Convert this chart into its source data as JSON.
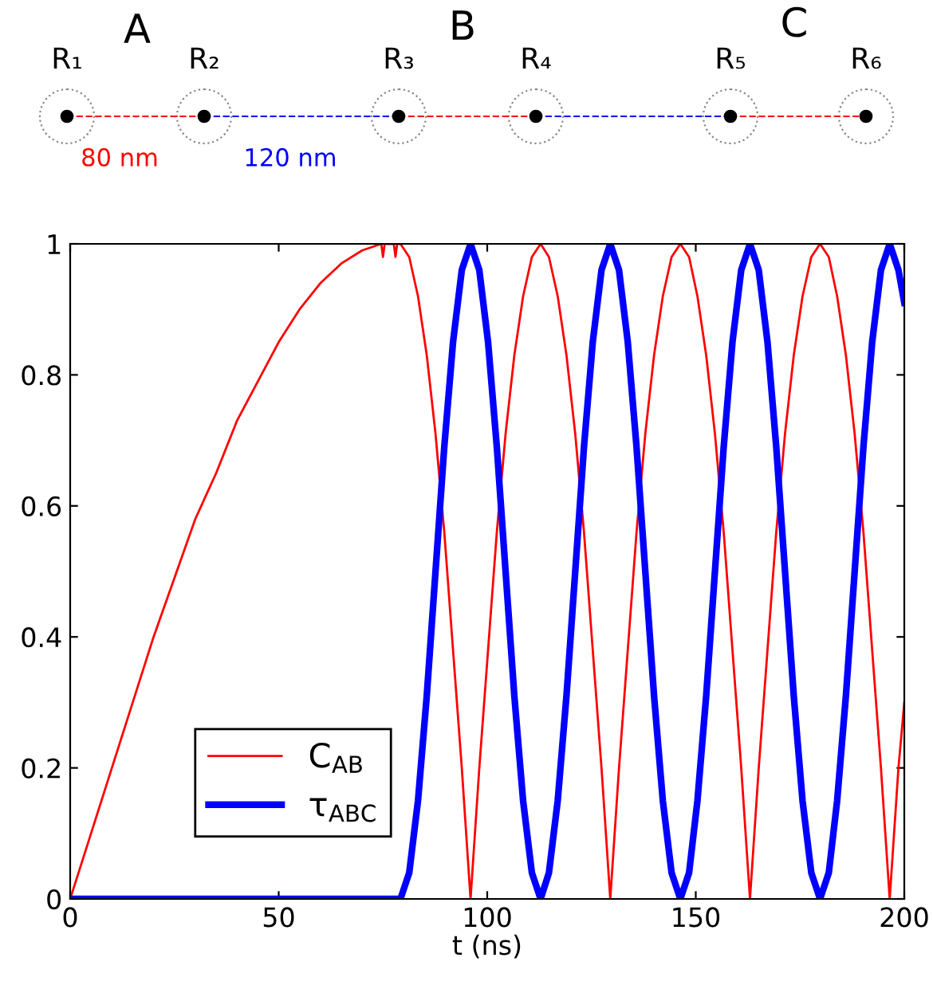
{
  "chart_data": {
    "type": "line",
    "xlabel": "t (ns)",
    "xlim": [
      0,
      200
    ],
    "xticks": [
      0,
      50,
      100,
      150,
      200
    ],
    "ylim": [
      0,
      1
    ],
    "yticks": [
      0,
      0.2,
      0.4,
      0.6,
      0.8,
      1
    ],
    "grid": false,
    "legend": "bottom left",
    "marker": "none",
    "line_style": "solid",
    "annotations": [
      "R₁",
      "R₂",
      "R₃",
      "R₄",
      "R₅",
      "R₆",
      "A",
      "B",
      "C",
      "80 nm",
      "120 nm"
    ],
    "series": [
      {
        "name": "C$_{AB}$",
        "color": "#ff0000",
        "x": [
          0,
          5,
          10,
          15,
          20,
          25,
          30,
          35,
          40,
          45,
          50,
          55,
          60,
          65,
          70,
          74.6,
          75,
          75.4,
          77.6,
          78,
          78.4,
          79.2,
          81.3,
          83.4,
          85.5,
          87.6,
          89.7,
          91.8,
          93.9,
          96.0,
          98.1,
          100.2,
          102.3,
          104.4,
          106.5,
          108.6,
          110.7,
          112.8,
          114.8,
          116.9,
          119.0,
          121.1,
          123.2,
          125.3,
          127.4,
          129.5,
          131.6,
          133.7,
          135.8,
          137.9,
          140.0,
          142.1,
          144.2,
          146.3,
          148.4,
          150.4,
          152.5,
          154.6,
          156.7,
          158.8,
          160.9,
          163.0,
          165.1,
          167.2,
          169.3,
          171.4,
          173.5,
          175.6,
          177.7,
          179.8,
          181.9,
          183.9,
          186.0,
          188.1,
          190.2,
          192.3,
          194.4,
          196.5,
          198.6,
          200
        ],
        "values": [
          0,
          0.1,
          0.2,
          0.3,
          0.4,
          0.49,
          0.58,
          0.65,
          0.73,
          0.79,
          0.85,
          0.9,
          0.94,
          0.97,
          0.99,
          1,
          0.98,
          1,
          1,
          0.98,
          1,
          1,
          0.98,
          0.92,
          0.83,
          0.71,
          0.56,
          0.38,
          0.2,
          0,
          0.2,
          0.38,
          0.56,
          0.71,
          0.83,
          0.92,
          0.98,
          1,
          0.98,
          0.92,
          0.83,
          0.71,
          0.56,
          0.38,
          0.2,
          0,
          0.2,
          0.38,
          0.56,
          0.71,
          0.83,
          0.92,
          0.98,
          1,
          0.98,
          0.92,
          0.83,
          0.71,
          0.56,
          0.38,
          0.2,
          0,
          0.2,
          0.38,
          0.56,
          0.71,
          0.83,
          0.92,
          0.98,
          1,
          0.98,
          0.92,
          0.83,
          0.71,
          0.56,
          0.38,
          0.2,
          0,
          0.2,
          0.3
        ]
      },
      {
        "name": "τ$_{ABC}$",
        "color": "#0000ff",
        "x": [
          0,
          79.2,
          81.3,
          83.4,
          85.5,
          87.6,
          89.7,
          91.8,
          93.9,
          96.0,
          98.1,
          100.2,
          102.3,
          104.4,
          106.5,
          108.6,
          110.7,
          112.8,
          114.8,
          116.9,
          119.0,
          121.1,
          123.2,
          125.3,
          127.4,
          129.5,
          131.6,
          133.7,
          135.8,
          137.9,
          140.0,
          142.1,
          144.2,
          146.3,
          148.4,
          150.4,
          152.5,
          154.6,
          156.7,
          158.8,
          160.9,
          163.0,
          165.1,
          167.2,
          169.3,
          171.4,
          173.5,
          175.6,
          177.7,
          179.8,
          181.9,
          183.9,
          186.0,
          188.1,
          190.2,
          192.3,
          194.4,
          196.5,
          198.6,
          200
        ],
        "values": [
          0,
          0,
          0.04,
          0.15,
          0.31,
          0.5,
          0.69,
          0.85,
          0.96,
          1,
          0.96,
          0.85,
          0.69,
          0.5,
          0.31,
          0.15,
          0.04,
          0,
          0.04,
          0.15,
          0.31,
          0.5,
          0.69,
          0.85,
          0.96,
          1,
          0.96,
          0.85,
          0.69,
          0.5,
          0.31,
          0.15,
          0.04,
          0,
          0.04,
          0.15,
          0.31,
          0.5,
          0.69,
          0.85,
          0.96,
          1,
          0.96,
          0.85,
          0.69,
          0.5,
          0.31,
          0.15,
          0.04,
          0,
          0.04,
          0.15,
          0.31,
          0.5,
          0.69,
          0.85,
          0.96,
          1,
          0.96,
          0.91
        ]
      }
    ]
  }
}
